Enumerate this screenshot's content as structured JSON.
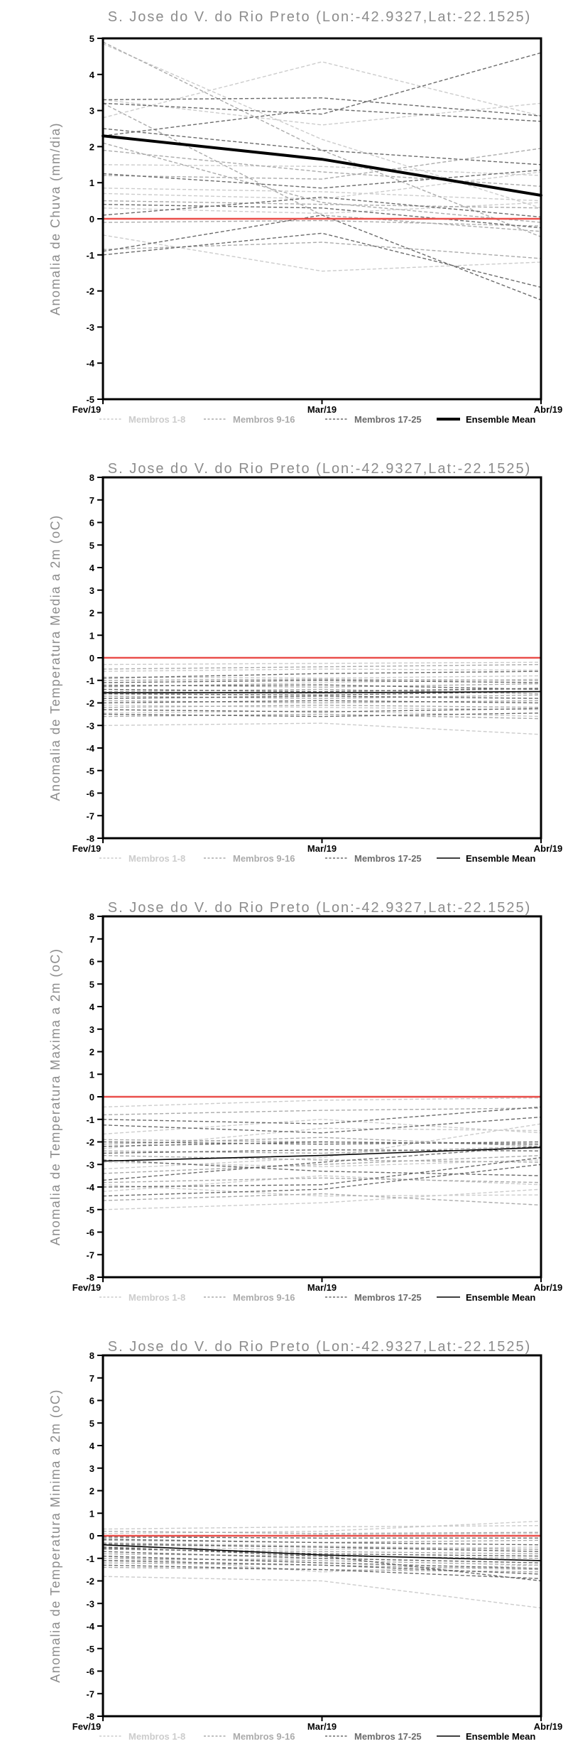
{
  "page": {
    "background": "#ffffff",
    "station_title": "S. Jose do V. do Rio Preto (Lon:-42.9327,Lat:-22.1525)"
  },
  "colors": {
    "title_text": "#8c8c8c",
    "axis_text": "#000000",
    "axis_line": "#000000",
    "zero_line": "#ea4f4a",
    "member_light": "#cccccc",
    "member_mid": "#ababab",
    "member_dark": "#6b6b6b",
    "ensemble_mean": "#000000"
  },
  "chart_data": [
    {
      "type": "line",
      "title": "S. Jose do V. do Rio Preto (Lon:-42.9327,Lat:-22.1525)",
      "ylabel": "Anomalia de Chuva (mm/dia)",
      "xlabel": "",
      "x_categories": [
        "Fev/19",
        "Mar/19",
        "Abr/19"
      ],
      "ylim": [
        -5,
        5
      ],
      "ytick_step": 1,
      "grid": false,
      "zero_line_value": 0,
      "legend_position": "bottom",
      "legend": [
        {
          "label": "Membros 1-8",
          "color": "#cccccc",
          "style": "dashed"
        },
        {
          "label": "Membros 9-16",
          "color": "#ababab",
          "style": "dashed"
        },
        {
          "label": "Membros 17-25",
          "color": "#6b6b6b",
          "style": "dashed"
        },
        {
          "label": "Ensemble Mean",
          "color": "#000000",
          "style": "solid"
        }
      ],
      "members": {
        "membros_1_8": {
          "color": "#cccccc",
          "series": [
            [
              4.85,
              2.2,
              0.3
            ],
            [
              2.8,
              4.35,
              2.85
            ],
            [
              3.3,
              2.6,
              3.2
            ],
            [
              1.5,
              1.45,
              1.2
            ],
            [
              0.85,
              0.75,
              0.5
            ],
            [
              0.7,
              0.55,
              1.3
            ],
            [
              -0.45,
              -1.45,
              -1.2
            ],
            [
              0.3,
              0.15,
              0.45
            ]
          ]
        },
        "membros_9_16": {
          "color": "#ababab",
          "series": [
            [
              4.9,
              1.9,
              -0.5
            ],
            [
              3.2,
              0.1,
              -0.35
            ],
            [
              2.1,
              0.45,
              -0.1
            ],
            [
              1.9,
              1.3,
              0.9
            ],
            [
              1.2,
              1.1,
              1.95
            ],
            [
              0.5,
              0.4,
              0.3
            ],
            [
              -0.1,
              -0.05,
              -0.2
            ],
            [
              -0.85,
              -0.65,
              -1.1
            ]
          ]
        },
        "membros_17_25": {
          "color": "#6b6b6b",
          "series": [
            [
              3.3,
              3.35,
              2.85
            ],
            [
              3.2,
              2.9,
              4.6
            ],
            [
              2.5,
              1.9,
              1.5
            ],
            [
              2.3,
              3.05,
              2.7
            ],
            [
              1.25,
              0.85,
              1.35
            ],
            [
              0.4,
              0.3,
              -0.25
            ],
            [
              0.1,
              0.6,
              0.05
            ],
            [
              -0.9,
              0.1,
              -2.25
            ],
            [
              -1.0,
              -0.4,
              -1.9
            ]
          ]
        }
      },
      "ensemble_mean": {
        "label": "Ensemble Mean",
        "color": "#000000",
        "width": 4,
        "values": [
          2.3,
          1.65,
          0.65
        ]
      }
    },
    {
      "type": "line",
      "title": "S. Jose do V. do Rio Preto (Lon:-42.9327,Lat:-22.1525)",
      "ylabel": "Anomalia de Temperatura Media a 2m (oC)",
      "xlabel": "",
      "x_categories": [
        "Fev/19",
        "Mar/19",
        "Abr/19"
      ],
      "ylim": [
        -8,
        8
      ],
      "ytick_step": 1,
      "grid": false,
      "zero_line_value": 0,
      "legend_position": "bottom",
      "legend": [
        {
          "label": "Membros 1-8",
          "color": "#cccccc",
          "style": "dashed"
        },
        {
          "label": "Membros 9-16",
          "color": "#ababab",
          "style": "dashed"
        },
        {
          "label": "Membros 17-25",
          "color": "#6b6b6b",
          "style": "dashed"
        },
        {
          "label": "Ensemble Mean",
          "color": "#000000",
          "style": "solid"
        }
      ],
      "members": {
        "membros_1_8": {
          "color": "#cccccc",
          "series": [
            [
              -0.3,
              -0.25,
              -0.2
            ],
            [
              -0.6,
              -0.5,
              -0.55
            ],
            [
              -0.85,
              -0.9,
              -0.8
            ],
            [
              -1.6,
              -1.5,
              -1.4
            ],
            [
              -2.1,
              -2.2,
              -2.3
            ],
            [
              -2.45,
              -2.35,
              -2.6
            ],
            [
              -3.0,
              -2.9,
              -3.4
            ],
            [
              -1.3,
              -1.1,
              -0.95
            ]
          ]
        },
        "membros_9_16": {
          "color": "#ababab",
          "series": [
            [
              -0.5,
              -0.4,
              -0.3
            ],
            [
              -1.0,
              -0.95,
              -1.0
            ],
            [
              -1.2,
              -1.3,
              -1.15
            ],
            [
              -1.5,
              -1.4,
              -1.6
            ],
            [
              -1.9,
              -2.0,
              -1.9
            ],
            [
              -2.2,
              -2.1,
              -2.2
            ],
            [
              -2.6,
              -2.5,
              -2.7
            ],
            [
              -1.7,
              -1.8,
              -1.65
            ]
          ]
        },
        "membros_17_25": {
          "color": "#6b6b6b",
          "series": [
            [
              -0.9,
              -0.7,
              -0.6
            ],
            [
              -1.1,
              -1.0,
              -1.1
            ],
            [
              -1.4,
              -1.5,
              -1.35
            ],
            [
              -1.6,
              -1.65,
              -1.5
            ],
            [
              -1.8,
              -1.7,
              -1.8
            ],
            [
              -2.0,
              -1.9,
              -2.0
            ],
            [
              -2.3,
              -2.4,
              -2.25
            ],
            [
              -2.5,
              -2.6,
              -2.45
            ],
            [
              -1.25,
              -1.2,
              -1.4
            ]
          ]
        }
      },
      "ensemble_mean": {
        "label": "Ensemble Mean",
        "color": "#000000",
        "width": 1.6,
        "values": [
          -1.55,
          -1.55,
          -1.5
        ]
      }
    },
    {
      "type": "line",
      "title": "S. Jose do V. do Rio Preto (Lon:-42.9327,Lat:-22.1525)",
      "ylabel": "Anomalia de Temperatura Maxima a 2m (oC)",
      "xlabel": "",
      "x_categories": [
        "Fev/19",
        "Mar/19",
        "Abr/19"
      ],
      "ylim": [
        -8,
        8
      ],
      "ytick_step": 1,
      "grid": false,
      "zero_line_value": 0,
      "legend_position": "bottom",
      "legend": [
        {
          "label": "Membros 1-8",
          "color": "#cccccc",
          "style": "dashed"
        },
        {
          "label": "Membros 9-16",
          "color": "#ababab",
          "style": "dashed"
        },
        {
          "label": "Membros 17-25",
          "color": "#6b6b6b",
          "style": "dashed"
        },
        {
          "label": "Ensemble Mean",
          "color": "#000000",
          "style": "solid"
        }
      ],
      "members": {
        "membros_1_8": {
          "color": "#cccccc",
          "series": [
            [
              -0.45,
              -0.15,
              -0.05
            ],
            [
              -1.65,
              -1.0,
              -1.6
            ],
            [
              -2.9,
              -3.1,
              -2.8
            ],
            [
              -3.2,
              -2.7,
              -1.2
            ],
            [
              -3.9,
              -4.4,
              -4.35
            ],
            [
              -4.2,
              -3.5,
              -3.9
            ],
            [
              -5.0,
              -4.7,
              -4.1
            ],
            [
              -2.3,
              -1.4,
              -1.5
            ]
          ]
        },
        "membros_9_16": {
          "color": "#ababab",
          "series": [
            [
              -0.8,
              -0.6,
              -0.5
            ],
            [
              -1.9,
              -2.0,
              -2.1
            ],
            [
              -2.1,
              -1.8,
              -2.2
            ],
            [
              -2.4,
              -2.5,
              -2.2
            ],
            [
              -2.6,
              -2.8,
              -2.9
            ],
            [
              -3.4,
              -3.0,
              -2.6
            ],
            [
              -3.8,
              -3.6,
              -3.8
            ],
            [
              -4.6,
              -4.3,
              -4.8
            ]
          ]
        },
        "membros_17_25": {
          "color": "#6b6b6b",
          "series": [
            [
              -1.0,
              -1.2,
              -0.45
            ],
            [
              -1.25,
              -1.6,
              -0.9
            ],
            [
              -2.0,
              -2.1,
              -2.0
            ],
            [
              -2.2,
              -2.0,
              -2.1
            ],
            [
              -2.5,
              -2.35,
              -2.4
            ],
            [
              -2.8,
              -3.3,
              -3.5
            ],
            [
              -3.7,
              -2.9,
              -2.2
            ],
            [
              -4.0,
              -3.9,
              -2.7
            ],
            [
              -4.4,
              -4.1,
              -3.0
            ]
          ]
        }
      },
      "ensemble_mean": {
        "label": "Ensemble Mean",
        "color": "#000000",
        "width": 1.6,
        "values": [
          -2.85,
          -2.6,
          -2.25
        ]
      }
    },
    {
      "type": "line",
      "title": "S. Jose do V. do Rio Preto (Lon:-42.9327,Lat:-22.1525)",
      "ylabel": "Anomalia de Temperatura Minima a 2m (oC)",
      "xlabel": "",
      "x_categories": [
        "Fev/19",
        "Mar/19",
        "Abr/19"
      ],
      "ylim": [
        -8,
        8
      ],
      "ytick_step": 1,
      "grid": false,
      "zero_line_value": 0,
      "legend_position": "bottom",
      "legend": [
        {
          "label": "Membros 1-8",
          "color": "#cccccc",
          "style": "dashed"
        },
        {
          "label": "Membros 9-16",
          "color": "#ababab",
          "style": "dashed"
        },
        {
          "label": "Membros 17-25",
          "color": "#6b6b6b",
          "style": "dashed"
        },
        {
          "label": "Ensemble Mean",
          "color": "#000000",
          "style": "solid"
        }
      ],
      "members": {
        "membros_1_8": {
          "color": "#cccccc",
          "series": [
            [
              0.3,
              0.4,
              0.45
            ],
            [
              -0.1,
              0.05,
              0.1
            ],
            [
              -1.8,
              -2.0,
              -3.2
            ],
            [
              -0.5,
              -0.6,
              -0.5
            ],
            [
              -1.1,
              -1.0,
              -1.2
            ],
            [
              0.1,
              0.2,
              0.65
            ],
            [
              -0.9,
              -1.6,
              -1.3
            ],
            [
              -0.3,
              -0.45,
              -0.6
            ]
          ]
        },
        "membros_9_16": {
          "color": "#ababab",
          "series": [
            [
              0.2,
              0.1,
              0.15
            ],
            [
              -0.2,
              -0.3,
              -0.2
            ],
            [
              -0.4,
              -0.5,
              -0.6
            ],
            [
              -0.6,
              -0.7,
              -0.8
            ],
            [
              -0.8,
              -0.9,
              -1.0
            ],
            [
              -1.0,
              -1.1,
              -1.3
            ],
            [
              -1.2,
              -1.3,
              -1.5
            ],
            [
              -1.4,
              -1.5,
              -1.6
            ]
          ]
        },
        "membros_17_25": {
          "color": "#6b6b6b",
          "series": [
            [
              -0.05,
              -0.1,
              -0.1
            ],
            [
              -0.15,
              -0.3,
              -0.4
            ],
            [
              -0.35,
              -0.5,
              -0.7
            ],
            [
              -0.55,
              -0.8,
              -0.9
            ],
            [
              -0.7,
              -1.0,
              -1.2
            ],
            [
              -0.9,
              -1.2,
              -1.45
            ],
            [
              -1.1,
              -1.3,
              -1.7
            ],
            [
              -1.3,
              -1.5,
              -1.9
            ],
            [
              -0.5,
              -0.9,
              -2.0
            ]
          ]
        }
      },
      "ensemble_mean": {
        "label": "Ensemble Mean",
        "color": "#000000",
        "width": 1.6,
        "values": [
          -0.4,
          -0.85,
          -1.1
        ]
      }
    }
  ]
}
